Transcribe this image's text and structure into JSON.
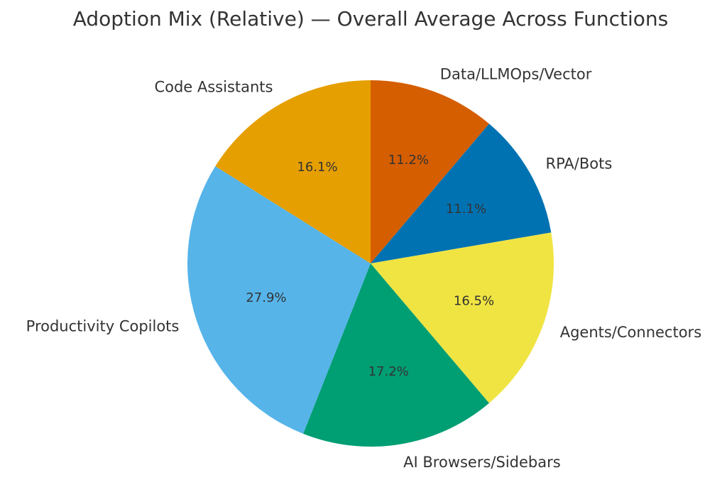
{
  "chart_data": {
    "type": "pie",
    "title": "Adoption Mix (Relative) — Overall Average Across Functions",
    "start_angle_deg": 90,
    "direction": "clockwise",
    "slices": [
      {
        "label": "Data/LLMOps/Vector",
        "value": 11.2,
        "pct_label": "11.2%",
        "color": "#D55E00"
      },
      {
        "label": "RPA/Bots",
        "value": 11.1,
        "pct_label": "11.1%",
        "color": "#0072B2"
      },
      {
        "label": "Agents/Connectors",
        "value": 16.5,
        "pct_label": "16.5%",
        "color": "#F0E442"
      },
      {
        "label": "AI Browsers/Sidebars",
        "value": 17.2,
        "pct_label": "17.2%",
        "color": "#009E73"
      },
      {
        "label": "Productivity Copilots",
        "value": 27.9,
        "pct_label": "27.9%",
        "color": "#56B4E9"
      },
      {
        "label": "Code Assistants",
        "value": 16.1,
        "pct_label": "16.1%",
        "color": "#E69F00"
      }
    ]
  }
}
